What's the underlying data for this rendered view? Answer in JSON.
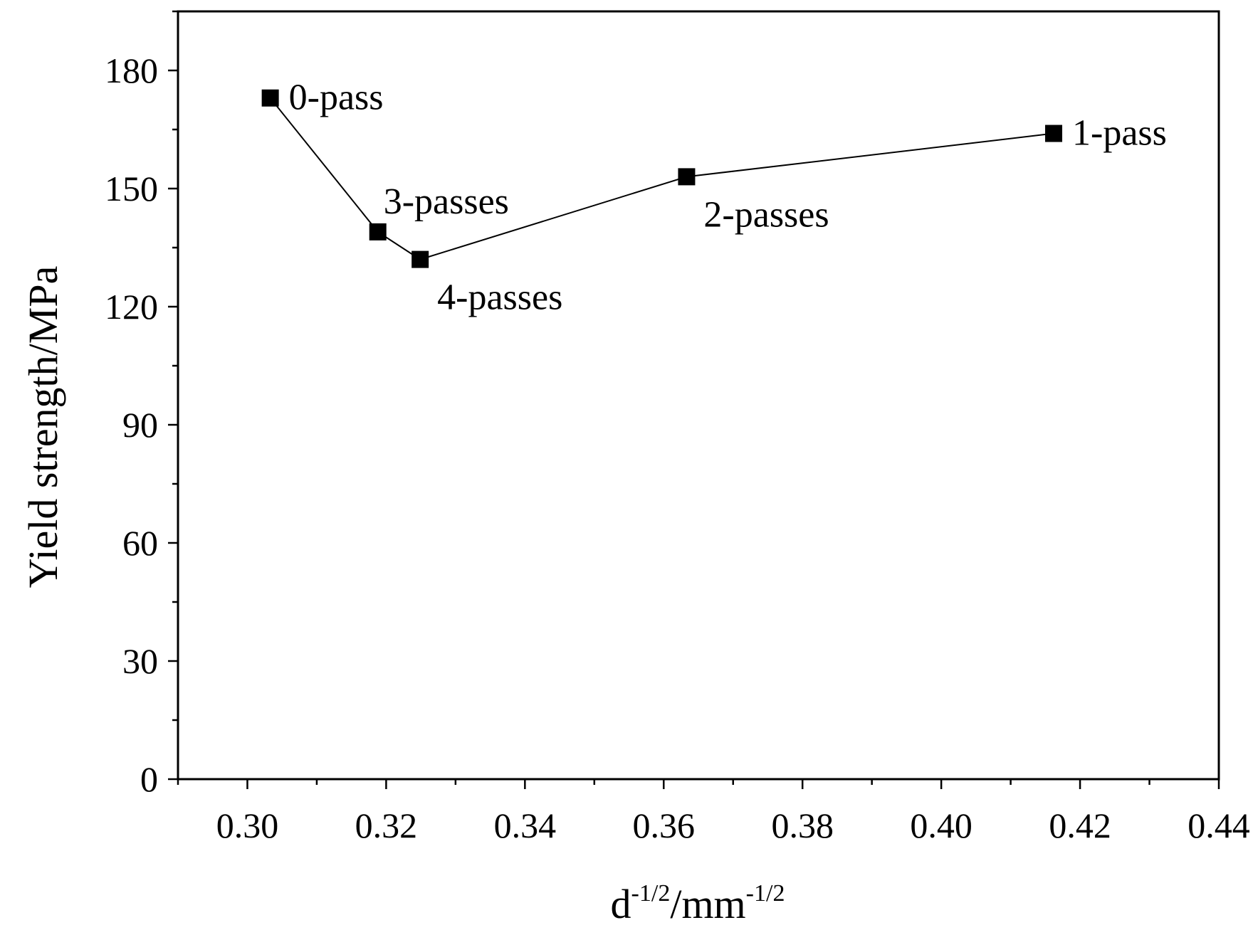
{
  "chart_data": {
    "type": "line",
    "title": "",
    "xlabel": {
      "base": "d",
      "sup": "-1/2",
      "sep": "/mm",
      "sup2": "-1/2"
    },
    "ylabel": "Yield strength/MPa",
    "xlim": [
      0.29,
      0.44
    ],
    "ylim": [
      0,
      195
    ],
    "xticks": [
      0.3,
      0.32,
      0.34,
      0.36,
      0.38,
      0.4,
      0.42,
      0.44
    ],
    "xtick_labels": [
      "0.30",
      "0.32",
      "0.34",
      "0.36",
      "0.38",
      "0.40",
      "0.42",
      "0.44"
    ],
    "yticks": [
      0,
      30,
      60,
      90,
      120,
      150,
      180
    ],
    "ytick_labels": [
      "0",
      "30",
      "60",
      "90",
      "120",
      "150",
      "180"
    ],
    "grid": false,
    "marker": "square",
    "series": [
      {
        "name": "Yield strength",
        "color": "#000000",
        "points": [
          {
            "x": 0.3033,
            "y": 173,
            "label": "0-pass",
            "label_pos": "right"
          },
          {
            "x": 0.3188,
            "y": 139,
            "label": "3-passes",
            "label_pos": "above-right"
          },
          {
            "x": 0.3249,
            "y": 132,
            "label": "4-passes",
            "label_pos": "below-right"
          },
          {
            "x": 0.3633,
            "y": 153,
            "label": "2-passes",
            "label_pos": "below-right"
          },
          {
            "x": 0.4162,
            "y": 164,
            "label": "1-pass",
            "label_pos": "right"
          }
        ]
      }
    ]
  }
}
